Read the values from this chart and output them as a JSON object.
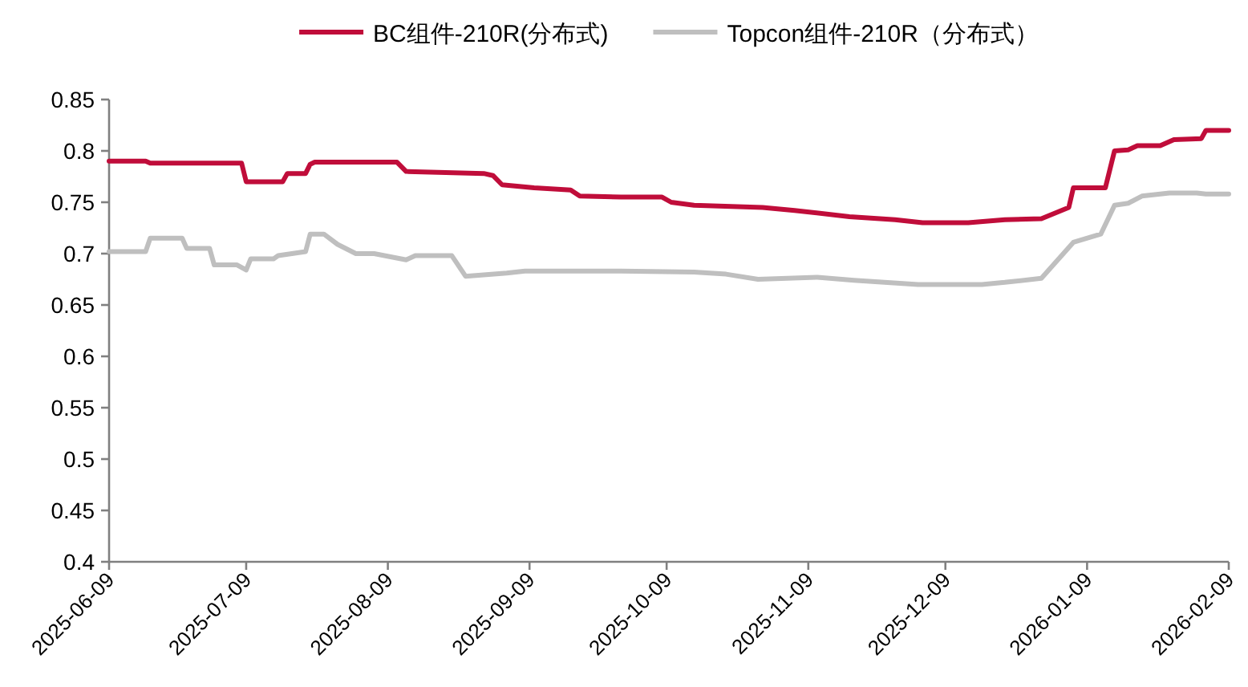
{
  "chart_data": {
    "type": "line",
    "legend": "top",
    "grid": false,
    "xlim": [
      "2025-06-09",
      "2026-02-09"
    ],
    "xticks": [
      "2025-06-09",
      "2025-07-09",
      "2025-08-09",
      "2025-09-09",
      "2025-10-09",
      "2025-11-09",
      "2025-12-09",
      "2026-01-09",
      "2026-02-09"
    ],
    "ylim": [
      0.4,
      0.85
    ],
    "yticks": [
      0.4,
      0.45,
      0.5,
      0.55,
      0.6,
      0.65,
      0.7,
      0.75,
      0.8,
      0.85
    ],
    "series": [
      {
        "name": "BC组件-210R(分布式)",
        "color": "#c00d3a",
        "x": [
          "2025-06-09",
          "2025-06-17",
          "2025-06-18",
          "2025-07-08",
          "2025-07-09",
          "2025-07-17",
          "2025-07-18",
          "2025-07-22",
          "2025-07-23",
          "2025-07-24",
          "2025-08-11",
          "2025-08-13",
          "2025-08-30",
          "2025-09-01",
          "2025-09-03",
          "2025-09-10",
          "2025-09-18",
          "2025-09-20",
          "2025-09-29",
          "2025-10-08",
          "2025-10-10",
          "2025-10-15",
          "2025-10-30",
          "2025-11-06",
          "2025-11-18",
          "2025-11-28",
          "2025-12-04",
          "2025-12-14",
          "2025-12-22",
          "2025-12-30",
          "2026-01-05",
          "2026-01-06",
          "2026-01-13",
          "2026-01-15",
          "2026-01-18",
          "2026-01-20",
          "2026-01-25",
          "2026-01-28",
          "2026-02-03",
          "2026-02-04",
          "2026-02-09"
        ],
        "values": [
          0.79,
          0.79,
          0.788,
          0.788,
          0.77,
          0.77,
          0.778,
          0.778,
          0.787,
          0.789,
          0.789,
          0.78,
          0.778,
          0.776,
          0.767,
          0.764,
          0.762,
          0.756,
          0.755,
          0.755,
          0.75,
          0.747,
          0.745,
          0.742,
          0.736,
          0.733,
          0.73,
          0.73,
          0.733,
          0.734,
          0.745,
          0.764,
          0.764,
          0.8,
          0.801,
          0.805,
          0.805,
          0.811,
          0.812,
          0.82,
          0.82
        ]
      },
      {
        "name": "Topcon组件-210R（分布式）",
        "color": "#bfbfbf",
        "x": [
          "2025-06-09",
          "2025-06-17",
          "2025-06-18",
          "2025-06-25",
          "2025-06-26",
          "2025-07-01",
          "2025-07-02",
          "2025-07-07",
          "2025-07-09",
          "2025-07-10",
          "2025-07-15",
          "2025-07-16",
          "2025-07-22",
          "2025-07-23",
          "2025-07-26",
          "2025-07-29",
          "2025-08-02",
          "2025-08-06",
          "2025-08-13",
          "2025-08-15",
          "2025-08-23",
          "2025-08-26",
          "2025-09-04",
          "2025-09-08",
          "2025-09-29",
          "2025-10-15",
          "2025-10-22",
          "2025-10-29",
          "2025-11-11",
          "2025-11-19",
          "2025-12-03",
          "2025-12-17",
          "2025-12-22",
          "2025-12-30",
          "2026-01-06",
          "2026-01-12",
          "2026-01-15",
          "2026-01-18",
          "2026-01-21",
          "2026-01-27",
          "2026-02-02",
          "2026-02-04",
          "2026-02-09"
        ],
        "values": [
          0.702,
          0.702,
          0.715,
          0.715,
          0.705,
          0.705,
          0.689,
          0.689,
          0.684,
          0.695,
          0.695,
          0.698,
          0.702,
          0.719,
          0.719,
          0.709,
          0.7,
          0.7,
          0.694,
          0.698,
          0.698,
          0.678,
          0.681,
          0.683,
          0.683,
          0.682,
          0.68,
          0.675,
          0.677,
          0.674,
          0.67,
          0.67,
          0.672,
          0.676,
          0.711,
          0.719,
          0.747,
          0.749,
          0.756,
          0.759,
          0.759,
          0.758,
          0.758
        ]
      }
    ]
  }
}
